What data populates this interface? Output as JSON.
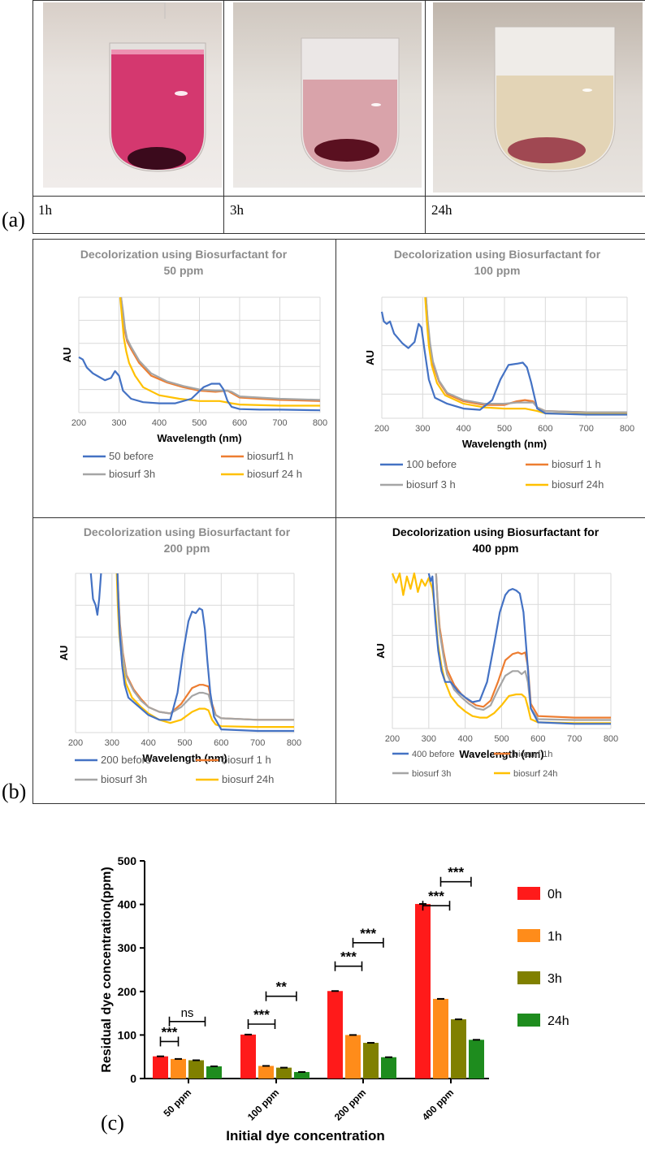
{
  "panel_a": {
    "label": "(a)",
    "photos": [
      {
        "caption": "1h",
        "liquid": "#d4386f",
        "pellet": "#3b0a1c"
      },
      {
        "caption": "3h",
        "liquid": "#d9a3aa",
        "pellet": "#5a1020"
      },
      {
        "caption": "24h",
        "liquid": "#e3d4b6",
        "pellet": "#8a1a30"
      }
    ]
  },
  "panel_b": {
    "label": "(b)"
  },
  "panel_c": {
    "label": "(c)"
  },
  "colors": {
    "blue": "#4472c4",
    "orange": "#ed7d31",
    "gray": "#a5a5a5",
    "yellow": "#ffc000",
    "red": "#ff1a1a",
    "bar_orange": "#ff8c1a",
    "olive": "#808000",
    "green": "#1e8c1e"
  },
  "chart_data": [
    {
      "type": "line",
      "title": [
        "Decolorization using Biosurfactant for",
        "50 ppm"
      ],
      "title_color": "#8c8c8c",
      "xlabel": "Wavelength (nm)",
      "ylabel": "AU",
      "xlim": [
        200,
        800
      ],
      "xticks": [
        200,
        300,
        400,
        500,
        600,
        700,
        800
      ],
      "ylim": [
        0,
        10
      ],
      "series": [
        {
          "name": "50 before",
          "color": "#4472c4",
          "x": [
            200,
            210,
            220,
            235,
            250,
            265,
            280,
            290,
            300,
            310,
            330,
            360,
            400,
            440,
            480,
            510,
            530,
            550,
            560,
            570,
            580,
            600,
            650,
            700,
            800
          ],
          "y": [
            4.8,
            4.6,
            3.9,
            3.4,
            3.1,
            2.8,
            3.0,
            3.6,
            3.2,
            1.9,
            1.2,
            0.9,
            0.8,
            0.8,
            1.2,
            2.2,
            2.5,
            2.5,
            2.0,
            1.0,
            0.5,
            0.3,
            0.25,
            0.25,
            0.2
          ]
        },
        {
          "name": "biosurf1 h",
          "color": "#ed7d31",
          "x": [
            305,
            310,
            315,
            320,
            330,
            350,
            380,
            420,
            460,
            500,
            540,
            570,
            580,
            600,
            700,
            800
          ],
          "y": [
            10,
            8.5,
            7.0,
            6.2,
            5.5,
            4.3,
            3.2,
            2.6,
            2.2,
            1.9,
            1.8,
            1.9,
            1.7,
            1.3,
            1.1,
            1.0
          ]
        },
        {
          "name": "biosurf 3h",
          "color": "#a5a5a5",
          "x": [
            305,
            310,
            315,
            320,
            330,
            350,
            380,
            420,
            460,
            500,
            540,
            570,
            580,
            600,
            700,
            800
          ],
          "y": [
            10,
            8.8,
            7.3,
            6.4,
            5.7,
            4.5,
            3.4,
            2.7,
            2.3,
            2.0,
            1.9,
            1.9,
            1.8,
            1.4,
            1.2,
            1.1
          ]
        },
        {
          "name": "biosurf 24 h",
          "color": "#ffc000",
          "x": [
            303,
            308,
            312,
            318,
            325,
            340,
            360,
            400,
            450,
            500,
            550,
            580,
            600,
            700,
            800
          ],
          "y": [
            10,
            8.0,
            6.5,
            5.3,
            4.3,
            3.2,
            2.2,
            1.5,
            1.2,
            1.0,
            1.0,
            0.8,
            0.7,
            0.6,
            0.6
          ]
        }
      ]
    },
    {
      "type": "line",
      "title": [
        "Decolorization using Biosurfactant for",
        "100 ppm"
      ],
      "title_color": "#8c8c8c",
      "xlabel": "Wavelength (nm)",
      "ylabel": "AU",
      "xlim": [
        200,
        800
      ],
      "xticks": [
        200,
        300,
        400,
        500,
        600,
        700,
        800
      ],
      "ylim": [
        0,
        10
      ],
      "series": [
        {
          "name": "100 before",
          "color": "#4472c4",
          "x": [
            200,
            205,
            212,
            220,
            230,
            250,
            265,
            280,
            290,
            297,
            305,
            315,
            330,
            360,
            400,
            440,
            470,
            490,
            510,
            530,
            545,
            555,
            565,
            580,
            600,
            700,
            800
          ],
          "y": [
            8.8,
            8.0,
            7.8,
            8.0,
            7.0,
            6.2,
            5.8,
            6.3,
            7.8,
            7.5,
            5.5,
            3.2,
            1.7,
            1.2,
            0.8,
            0.7,
            1.5,
            3.2,
            4.4,
            4.5,
            4.6,
            4.2,
            3.0,
            0.8,
            0.4,
            0.3,
            0.3
          ]
        },
        {
          "name": "biosurf 1 h",
          "color": "#ed7d31",
          "x": [
            308,
            312,
            318,
            325,
            340,
            360,
            400,
            450,
            500,
            530,
            550,
            570,
            580,
            600,
            700,
            800
          ],
          "y": [
            10,
            8.0,
            6.0,
            4.5,
            3.0,
            2.0,
            1.4,
            1.1,
            1.1,
            1.4,
            1.5,
            1.4,
            0.9,
            0.6,
            0.5,
            0.5
          ]
        },
        {
          "name": "biosurf 3 h",
          "color": "#a5a5a5",
          "x": [
            308,
            312,
            318,
            325,
            340,
            360,
            400,
            450,
            500,
            530,
            550,
            570,
            580,
            600,
            700,
            800
          ],
          "y": [
            10,
            8.2,
            6.2,
            4.7,
            3.1,
            2.1,
            1.5,
            1.2,
            1.2,
            1.3,
            1.3,
            1.3,
            0.9,
            0.6,
            0.5,
            0.5
          ]
        },
        {
          "name": "biosurf 24h",
          "color": "#ffc000",
          "x": [
            306,
            310,
            315,
            322,
            335,
            355,
            400,
            450,
            500,
            550,
            580,
            600,
            700,
            800
          ],
          "y": [
            10,
            8.0,
            6.0,
            4.4,
            2.9,
            1.9,
            1.2,
            0.9,
            0.8,
            0.8,
            0.6,
            0.4,
            0.35,
            0.35
          ]
        }
      ]
    },
    {
      "type": "line",
      "title": [
        "Decolorization using Biosurfactant for",
        "200 ppm"
      ],
      "title_color": "#8c8c8c",
      "xlabel": "Wavelength (nm)",
      "ylabel": "AU",
      "xlim": [
        200,
        800
      ],
      "xticks": [
        200,
        300,
        400,
        500,
        600,
        700,
        800
      ],
      "ylim": [
        0,
        10
      ],
      "series": [
        {
          "name": "200 before",
          "color": "#4472c4",
          "x": [
            242,
            248,
            255,
            260,
            265,
            270
          ],
          "y": [
            10,
            8.4,
            8.0,
            7.4,
            8.4,
            10
          ]
        },
        {
          "name": "200 before",
          "color": "#4472c4",
          "x": [
            315,
            318,
            322,
            328,
            335,
            345,
            360,
            380,
            400,
            430,
            460,
            480,
            495,
            510,
            520,
            530,
            540,
            548,
            555,
            562,
            570,
            580,
            600,
            700,
            800
          ],
          "y": [
            10,
            8.0,
            6.0,
            4.2,
            3.0,
            2.2,
            1.9,
            1.5,
            1.1,
            0.8,
            0.8,
            2.5,
            5.0,
            7.0,
            7.6,
            7.5,
            7.8,
            7.7,
            6.5,
            4.5,
            2.5,
            1.0,
            0.2,
            0.1,
            0.1
          ]
        },
        {
          "name": "biosurf 1 h",
          "color": "#ed7d31",
          "x": [
            315,
            318,
            322,
            330,
            340,
            360,
            380,
            400,
            430,
            460,
            490,
            520,
            540,
            550,
            565,
            575,
            585,
            600,
            700,
            800
          ],
          "y": [
            10,
            8.5,
            6.8,
            5.0,
            3.6,
            2.7,
            2.1,
            1.6,
            1.3,
            1.2,
            1.8,
            2.8,
            3.0,
            3.0,
            2.9,
            1.8,
            1.1,
            0.9,
            0.8,
            0.8
          ]
        },
        {
          "name": "biosurf 3h",
          "color": "#a5a5a5",
          "x": [
            315,
            318,
            322,
            330,
            340,
            360,
            380,
            400,
            430,
            460,
            490,
            520,
            540,
            550,
            565,
            575,
            585,
            600,
            700,
            800
          ],
          "y": [
            10,
            8.3,
            6.6,
            4.8,
            3.5,
            2.6,
            2.0,
            1.6,
            1.3,
            1.2,
            1.6,
            2.3,
            2.5,
            2.5,
            2.4,
            1.6,
            1.1,
            0.9,
            0.8,
            0.8
          ]
        },
        {
          "name": "biosurf 24h",
          "color": "#ffc000",
          "x": [
            313,
            316,
            320,
            328,
            338,
            355,
            380,
            400,
            430,
            460,
            490,
            520,
            540,
            555,
            565,
            575,
            585,
            600,
            700,
            800
          ],
          "y": [
            10,
            8.0,
            6.2,
            4.4,
            3.1,
            2.2,
            1.6,
            1.2,
            0.8,
            0.6,
            0.8,
            1.3,
            1.5,
            1.5,
            1.4,
            0.8,
            0.5,
            0.4,
            0.35,
            0.35
          ]
        }
      ]
    },
    {
      "type": "line",
      "title": [
        "Decolorization using Biosurfactant for",
        "400 ppm"
      ],
      "title_color": "#000000",
      "xlabel": "Wavelength (nm)",
      "ylabel": "AU",
      "xlim": [
        200,
        800
      ],
      "xticks": [
        200,
        300,
        400,
        500,
        600,
        700,
        800
      ],
      "ylim": [
        0,
        10
      ],
      "series": [
        {
          "name": "400 before",
          "color": "#4472c4",
          "x": [
            300,
            305,
            310,
            318,
            326,
            335,
            345,
            360,
            380,
            400,
            420,
            440,
            460,
            480,
            495,
            510,
            520,
            530,
            540,
            550,
            560,
            570,
            580,
            600,
            700,
            800
          ],
          "y": [
            10,
            9.5,
            9.8,
            7.0,
            5.0,
            3.7,
            3.0,
            3.0,
            2.4,
            2.0,
            1.7,
            1.8,
            3.0,
            5.5,
            7.5,
            8.6,
            8.9,
            9.0,
            8.9,
            8.7,
            7.5,
            4.5,
            1.3,
            0.4,
            0.3,
            0.3
          ]
        },
        {
          "name": "biosurf 1h",
          "color": "#ed7d31",
          "x": [
            320,
            325,
            330,
            340,
            350,
            370,
            390,
            410,
            430,
            450,
            470,
            490,
            510,
            530,
            545,
            555,
            565,
            572,
            580,
            600,
            700,
            800
          ],
          "y": [
            10,
            8.0,
            6.5,
            5.0,
            3.8,
            2.8,
            2.2,
            1.8,
            1.5,
            1.4,
            1.8,
            3.0,
            4.4,
            4.8,
            4.9,
            4.8,
            4.9,
            4.0,
            1.6,
            0.8,
            0.7,
            0.7
          ]
        },
        {
          "name": "biosurf 3h",
          "color": "#a5a5a5",
          "x": [
            320,
            325,
            330,
            340,
            350,
            370,
            390,
            410,
            430,
            450,
            470,
            490,
            510,
            530,
            545,
            555,
            565,
            572,
            580,
            600,
            700,
            800
          ],
          "y": [
            10,
            7.8,
            6.2,
            4.7,
            3.5,
            2.5,
            2.0,
            1.6,
            1.3,
            1.2,
            1.5,
            2.5,
            3.4,
            3.7,
            3.7,
            3.5,
            3.7,
            3.0,
            1.3,
            0.6,
            0.55,
            0.55
          ]
        },
        {
          "name": "biosurf 24h",
          "color": "#ffc000",
          "x": [
            200,
            210,
            220,
            230,
            240,
            250,
            260,
            270,
            280,
            290,
            300,
            310,
            318,
            325,
            335,
            345,
            360,
            380,
            400,
            420,
            440,
            460,
            480,
            500,
            520,
            540,
            555,
            565,
            572,
            580,
            600,
            700,
            800
          ],
          "y": [
            10,
            9.4,
            10,
            8.6,
            9.8,
            9.0,
            10,
            8.8,
            9.6,
            9.2,
            9.7,
            9.0,
            7.5,
            5.5,
            4.0,
            3.0,
            2.1,
            1.5,
            1.1,
            0.8,
            0.7,
            0.7,
            1.0,
            1.5,
            2.1,
            2.2,
            2.2,
            2.0,
            1.4,
            0.6,
            0.4,
            0.35,
            0.35
          ]
        }
      ]
    },
    {
      "type": "bar",
      "xlabel": "Initial dye concentration",
      "ylabel": "Residual dye concentration(ppm)",
      "ylim": [
        0,
        500
      ],
      "yticks": [
        0,
        100,
        200,
        300,
        400,
        500
      ],
      "categories": [
        "50 ppm",
        "100 ppm",
        "200 ppm",
        "400 ppm"
      ],
      "series": [
        {
          "name": "0h",
          "color": "#ff1a1a",
          "values": [
            51,
            101,
            201,
            401
          ]
        },
        {
          "name": "1h",
          "color": "#ff8c1a",
          "values": [
            45,
            29,
            100,
            183
          ]
        },
        {
          "name": "3h",
          "color": "#808000",
          "values": [
            42,
            25,
            82,
            136
          ]
        },
        {
          "name": "24h",
          "color": "#1e8c1e",
          "values": [
            28,
            15,
            49,
            89
          ]
        }
      ],
      "significance": [
        {
          "category": 0,
          "from": 0,
          "to": 1,
          "level": 85,
          "label": "***"
        },
        {
          "category": 0,
          "from": 0.5,
          "to": 2.5,
          "level": 131,
          "label": "ns"
        },
        {
          "category": 1,
          "from": 0,
          "to": 1.5,
          "level": 125,
          "label": "***"
        },
        {
          "category": 1,
          "from": 1,
          "to": 2.7,
          "level": 189,
          "label": "**"
        },
        {
          "category": 2,
          "from": 0,
          "to": 1.5,
          "level": 258,
          "label": "***"
        },
        {
          "category": 2,
          "from": 1,
          "to": 2.7,
          "level": 312,
          "label": "***"
        },
        {
          "category": 3,
          "from": 0,
          "to": 1.5,
          "level": 397,
          "label": "***"
        },
        {
          "category": 3,
          "from": 1,
          "to": 2.7,
          "level": 452,
          "label": "***"
        }
      ]
    }
  ]
}
